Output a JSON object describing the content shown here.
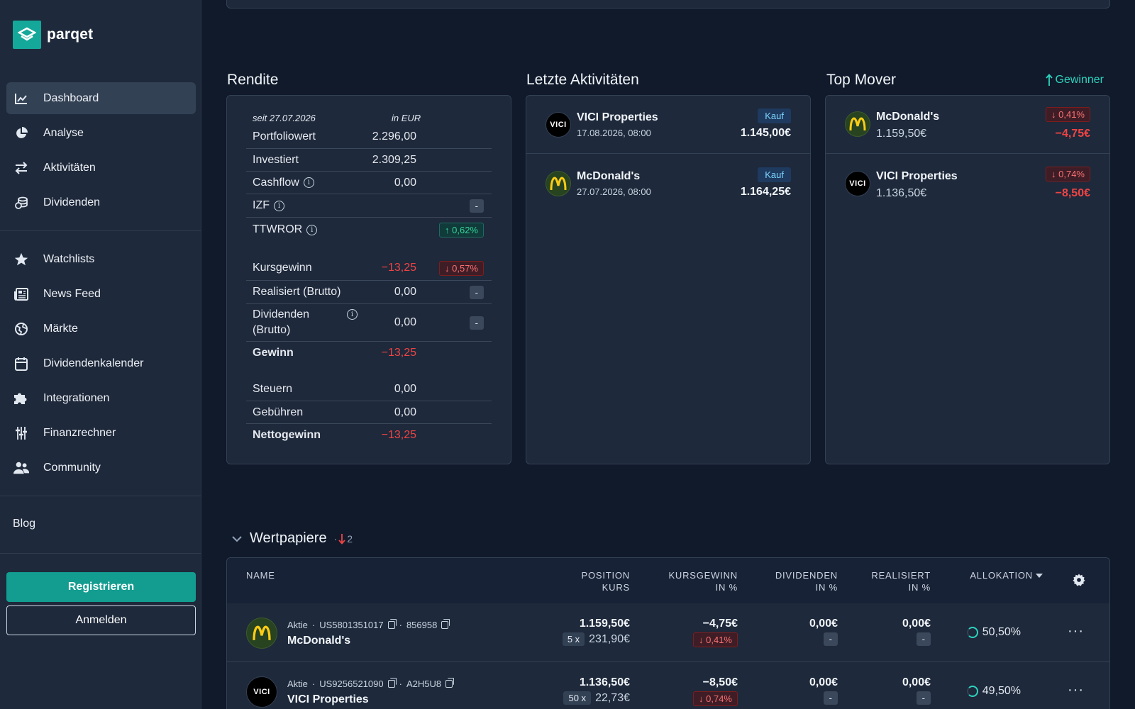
{
  "brand": {
    "name": "parqet"
  },
  "nav": {
    "primary": [
      {
        "label": "Dashboard",
        "icon": "chart-line-icon"
      },
      {
        "label": "Analyse",
        "icon": "pie-chart-icon"
      },
      {
        "label": "Aktivitäten",
        "icon": "arrows-exchange-icon"
      },
      {
        "label": "Dividenden",
        "icon": "coins-icon"
      }
    ],
    "secondary": [
      {
        "label": "Watchlists",
        "icon": "star-icon"
      },
      {
        "label": "News Feed",
        "icon": "newspaper-icon"
      },
      {
        "label": "Märkte",
        "icon": "globe-icon"
      },
      {
        "label": "Dividendenkalender",
        "icon": "calendar-icon"
      },
      {
        "label": "Integrationen",
        "icon": "puzzle-icon"
      },
      {
        "label": "Finanzrechner",
        "icon": "sliders-icon"
      },
      {
        "label": "Community",
        "icon": "users-icon"
      }
    ],
    "blog": "Blog",
    "register": "Registrieren",
    "login": "Anmelden"
  },
  "rendite": {
    "title": "Rendite",
    "since": "seit 27.07.2026",
    "currency": "in EUR",
    "portfoliowert": {
      "label": "Portfoliowert",
      "value": "2.296,00"
    },
    "investiert": {
      "label": "Investiert",
      "value": "2.309,25"
    },
    "cashflow": {
      "label": "Cashflow",
      "value": "0,00"
    },
    "izf": {
      "label": "IZF",
      "badge": "-"
    },
    "ttwror": {
      "label": "TTWROR",
      "badge": "0,62%"
    },
    "kursgewinn": {
      "label": "Kursgewinn",
      "value": "−13,25",
      "badge": "0,57%"
    },
    "realisiert": {
      "label": "Realisiert (Brutto)",
      "value": "0,00",
      "badge": "-"
    },
    "dividenden": {
      "label1": "Dividenden",
      "label2": "(Brutto)",
      "value": "0,00",
      "badge": "-"
    },
    "gewinn": {
      "label": "Gewinn",
      "value": "−13,25"
    },
    "steuern": {
      "label": "Steuern",
      "value": "0,00"
    },
    "gebuehren": {
      "label": "Gebühren",
      "value": "0,00"
    },
    "nettogewinn": {
      "label": "Nettogewinn",
      "value": "−13,25"
    }
  },
  "activities": {
    "title": "Letzte Aktivitäten",
    "items": [
      {
        "name": "VICI Properties",
        "date": "17.08.2026, 08:00",
        "type": "Kauf",
        "amount": "1.145,00€",
        "logo": "VICI"
      },
      {
        "name": "McDonald's",
        "date": "27.07.2026, 08:00",
        "type": "Kauf",
        "amount": "1.164,25€",
        "logo": "M"
      }
    ]
  },
  "movers": {
    "title": "Top Mover",
    "filter": "Gewinner",
    "items": [
      {
        "name": "McDonald's",
        "price": "1.159,50€",
        "pct": "0,41%",
        "abs": "−4,75€",
        "logo": "M"
      },
      {
        "name": "VICI Properties",
        "price": "1.136,50€",
        "pct": "0,74%",
        "abs": "−8,50€",
        "logo": "VICI"
      }
    ]
  },
  "securities": {
    "title": "Wertpapiere",
    "count": "2",
    "columns": {
      "name": "NAME",
      "position1": "POSITION",
      "position2": "KURS",
      "kurs1": "KURSGEWINN",
      "kurs2": "IN %",
      "div1": "DIVIDENDEN",
      "div2": "IN %",
      "real1": "REALISIERT",
      "real2": "IN %",
      "alloc": "ALLOKATION"
    },
    "rows": [
      {
        "type": "Aktie",
        "isin": "US5801351017",
        "wkn": "856958",
        "name": "McDonald's",
        "position": "1.159,50€",
        "qty": "5 x",
        "price": "231,90€",
        "gain": "−4,75€",
        "gain_pct": "0,41%",
        "div": "0,00€",
        "div_pct": "-",
        "real": "0,00€",
        "real_pct": "-",
        "alloc": "50,50%",
        "logo": "M"
      },
      {
        "type": "Aktie",
        "isin": "US9256521090",
        "wkn": "A2H5U8",
        "name": "VICI Properties",
        "position": "1.136,50€",
        "qty": "50 x",
        "price": "22,73€",
        "gain": "−8,50€",
        "gain_pct": "0,74%",
        "div": "0,00€",
        "div_pct": "-",
        "real": "0,00€",
        "real_pct": "-",
        "alloc": "49,50%",
        "logo": "VICI"
      }
    ]
  }
}
